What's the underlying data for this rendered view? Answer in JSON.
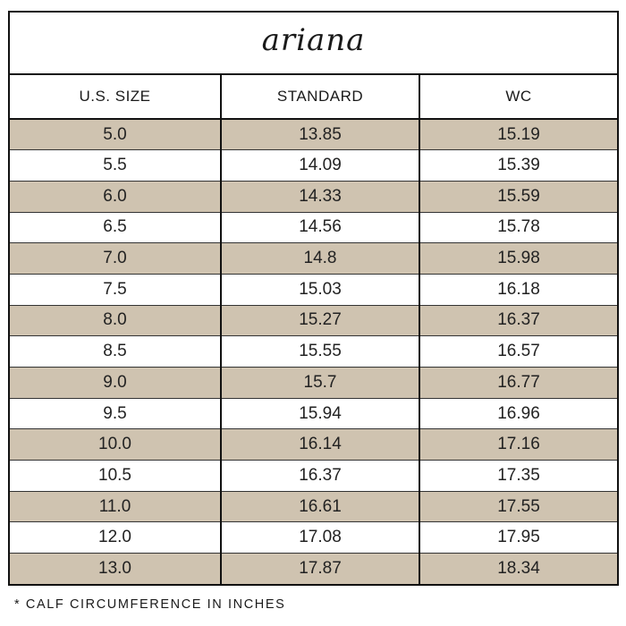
{
  "title": "ariana",
  "headers": [
    "U.S. SIZE",
    "STANDARD",
    "WC"
  ],
  "rows": [
    [
      "5.0",
      "13.85",
      "15.19"
    ],
    [
      "5.5",
      "14.09",
      "15.39"
    ],
    [
      "6.0",
      "14.33",
      "15.59"
    ],
    [
      "6.5",
      "14.56",
      "15.78"
    ],
    [
      "7.0",
      "14.8",
      "15.98"
    ],
    [
      "7.5",
      "15.03",
      "16.18"
    ],
    [
      "8.0",
      "15.27",
      "16.37"
    ],
    [
      "8.5",
      "15.55",
      "16.57"
    ],
    [
      "9.0",
      "15.7",
      "16.77"
    ],
    [
      "9.5",
      "15.94",
      "16.96"
    ],
    [
      "10.0",
      "16.14",
      "17.16"
    ],
    [
      "10.5",
      "16.37",
      "17.35"
    ],
    [
      "11.0",
      "16.61",
      "17.55"
    ],
    [
      "12.0",
      "17.08",
      "17.95"
    ],
    [
      "13.0",
      "17.87",
      "18.34"
    ]
  ],
  "footnote": "* CALF CIRCUMFERENCE IN INCHES",
  "colors": {
    "shaded_row": "#cfc3b0",
    "plain_row": "#ffffff",
    "border": "#111111"
  }
}
